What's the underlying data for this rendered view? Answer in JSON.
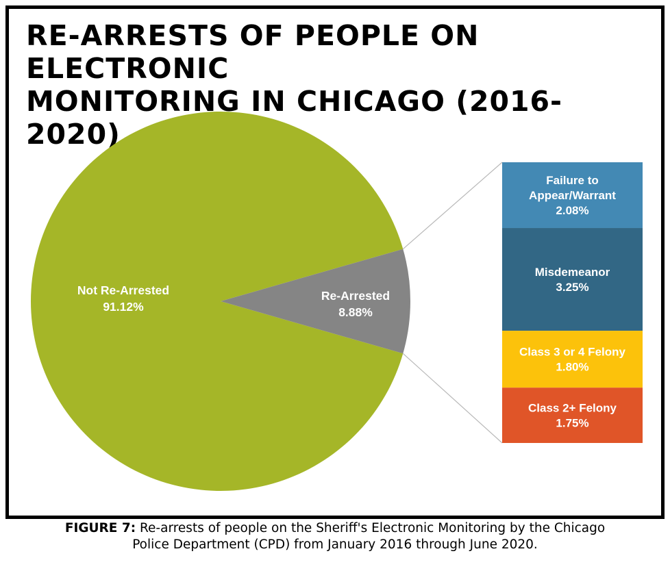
{
  "title": {
    "line1": "RE-ARRESTS OF PEOPLE ON ELECTRONIC",
    "line2": "MONITORING IN CHICAGO (2016-2020)"
  },
  "caption": {
    "label": "FIGURE 7:",
    "line1": "Re-arrests of people on the Sheriff's Electronic Monitoring by the Chicago",
    "line2": "Police Department (CPD) from January 2016 through June 2020."
  },
  "chart_data": {
    "type": "pie",
    "title": "RE-ARRESTS OF PEOPLE ON ELECTRONIC MONITORING IN CHICAGO (2016-2020)",
    "slices": [
      {
        "label": "Not Re-Arrested",
        "value": 91.12,
        "display": "91.12%",
        "color": "#a5b628"
      },
      {
        "label": "Re-Arrested",
        "value": 8.88,
        "display": "8.88%",
        "color": "#858585"
      }
    ],
    "breakdown": {
      "of": "Re-Arrested",
      "type": "stacked-bar",
      "segments": [
        {
          "label_lines": [
            "Failure to",
            "Appear/Warrant"
          ],
          "value": 2.08,
          "display": "2.08%",
          "color": "#4389b4"
        },
        {
          "label_lines": [
            "Misdemeanor"
          ],
          "value": 3.25,
          "display": "3.25%",
          "color": "#326785"
        },
        {
          "label_lines": [
            "Class 3 or 4 Felony"
          ],
          "value": 1.8,
          "display": "1.80%",
          "color": "#fcc20b"
        },
        {
          "label_lines": [
            "Class 2+ Felony"
          ],
          "value": 1.75,
          "display": "1.75%",
          "color": "#e05528"
        }
      ]
    }
  }
}
